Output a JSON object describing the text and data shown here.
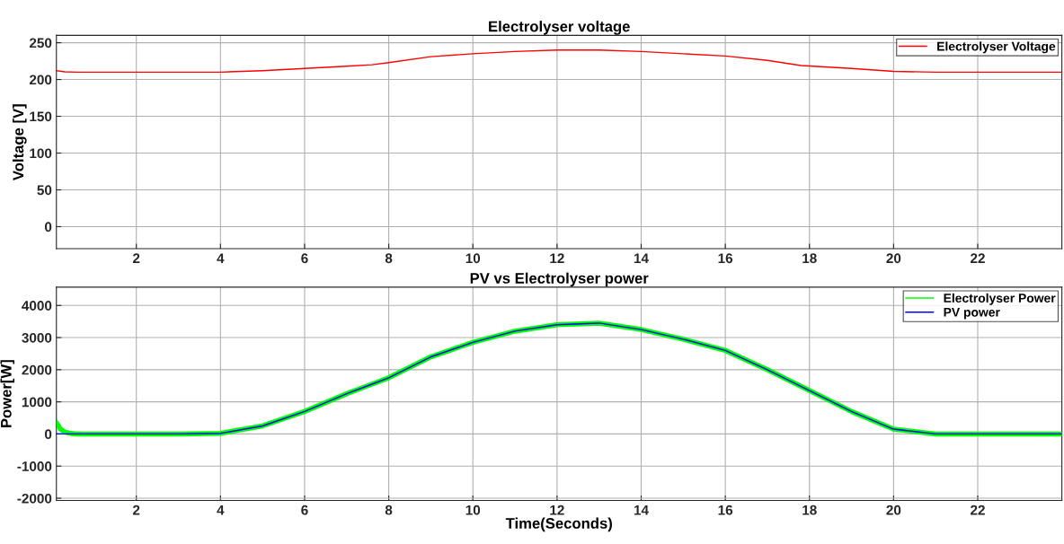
{
  "chart_data": [
    {
      "type": "line",
      "title": "Electrolyser voltage",
      "ylabel": "Voltage [V]",
      "xlim": [
        0.1,
        24
      ],
      "xticks": [
        2,
        4,
        6,
        8,
        10,
        12,
        14,
        16,
        18,
        20,
        22
      ],
      "ylim": [
        -30,
        260
      ],
      "yticks": [
        0,
        50,
        100,
        150,
        200,
        250
      ],
      "grid": true,
      "legend": "top right",
      "series": [
        {
          "name": "Electrolyser Voltage",
          "color": "#ff0000",
          "x": [
            0.1,
            0.3,
            0.6,
            2,
            4,
            5,
            6,
            7,
            7.6,
            8,
            9,
            10,
            11,
            12,
            13,
            14,
            15,
            16,
            17,
            17.8,
            19,
            20,
            21,
            22,
            24
          ],
          "values": [
            212,
            210.5,
            210,
            210,
            210,
            212,
            215,
            218,
            220,
            223,
            231,
            235,
            238,
            240,
            240,
            238,
            235,
            232,
            226,
            219,
            215,
            211,
            210,
            210,
            210
          ]
        }
      ]
    },
    {
      "type": "line",
      "title": "PV vs Electrolyser power",
      "xlabel": "Time(Seconds)",
      "ylabel": "Power[W]",
      "xlim": [
        0.1,
        24
      ],
      "xticks": [
        2,
        4,
        6,
        8,
        10,
        12,
        14,
        16,
        18,
        20,
        22
      ],
      "ylim": [
        -2070,
        4570
      ],
      "yticks": [
        -2000,
        -1000,
        0,
        1000,
        2000,
        3000,
        4000
      ],
      "grid": true,
      "legend": "top right",
      "series": [
        {
          "name": "Electrolyser Power",
          "color": "#00ff00",
          "x": [
            0.1,
            0.2,
            0.3,
            0.45,
            0.6,
            1,
            2,
            3,
            4,
            5,
            6,
            7,
            7.5,
            8,
            9,
            10,
            11,
            12,
            13,
            14,
            15,
            16,
            17,
            18,
            19,
            20,
            21,
            22,
            24
          ],
          "values": [
            350,
            150,
            60,
            15,
            0,
            0,
            0,
            0,
            20,
            250,
            700,
            1250,
            1500,
            1750,
            2400,
            2850,
            3200,
            3400,
            3450,
            3250,
            2950,
            2600,
            2000,
            1350,
            700,
            150,
            0,
            0,
            0
          ]
        },
        {
          "name": "PV power",
          "color": "#0000ff",
          "x": [
            0.1,
            1,
            2,
            3,
            4,
            5,
            6,
            7,
            7.5,
            8,
            9,
            10,
            11,
            12,
            13,
            14,
            15,
            16,
            17,
            18,
            19,
            20,
            21,
            22,
            24
          ],
          "values": [
            0,
            0,
            0,
            0,
            20,
            250,
            700,
            1250,
            1500,
            1750,
            2400,
            2850,
            3200,
            3400,
            3450,
            3250,
            2950,
            2600,
            2000,
            1350,
            700,
            150,
            0,
            0,
            0
          ]
        }
      ]
    }
  ]
}
